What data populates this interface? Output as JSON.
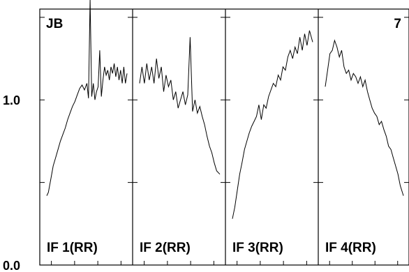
{
  "chart_data": {
    "type": "line",
    "title": "",
    "corner_labels": {
      "left": "JB",
      "right": "7"
    },
    "ylim": [
      0.0,
      1.55
    ],
    "y_tick_labels": [
      {
        "value": 0.0,
        "label": "0.0"
      },
      {
        "value": 1.0,
        "label": "1.0"
      }
    ],
    "y_minor_ticks": [
      0.5,
      1.0,
      1.5
    ],
    "x_minor_ticks": [
      0.125,
      0.375,
      0.625,
      0.875
    ],
    "grid": false,
    "panels": [
      {
        "label": "IF 1(RR)",
        "x": [
          0,
          0.02,
          0.05,
          0.08,
          0.11,
          0.14,
          0.17,
          0.2,
          0.23,
          0.26,
          0.29,
          0.32,
          0.35,
          0.38,
          0.41,
          0.44,
          0.47,
          0.5,
          0.52,
          0.54,
          0.56,
          0.58,
          0.6,
          0.62,
          0.64,
          0.66,
          0.68,
          0.7,
          0.72,
          0.74,
          0.76,
          0.78,
          0.8,
          0.82,
          0.84,
          0.86,
          0.88,
          0.9,
          0.92,
          0.94,
          0.96,
          0.98,
          1
        ],
        "values": [
          0.42,
          0.44,
          0.52,
          0.6,
          0.65,
          0.7,
          0.75,
          0.79,
          0.83,
          0.88,
          0.92,
          0.96,
          0.99,
          1.03,
          1.07,
          1.09,
          1.06,
          1.1,
          1.01,
          1.61,
          1.02,
          1.1,
          1.0,
          1.05,
          1.08,
          1.3,
          1.02,
          1.12,
          1.2,
          1.15,
          1.18,
          1.12,
          1.2,
          1.16,
          1.22,
          1.14,
          1.2,
          1.12,
          1.18,
          1.1,
          1.2,
          1.1,
          1.16
        ]
      },
      {
        "label": "IF 2(RR)",
        "x": [
          0,
          0.03,
          0.06,
          0.09,
          0.12,
          0.15,
          0.18,
          0.21,
          0.24,
          0.27,
          0.3,
          0.33,
          0.36,
          0.39,
          0.42,
          0.45,
          0.48,
          0.51,
          0.54,
          0.57,
          0.6,
          0.63,
          0.66,
          0.69,
          0.72,
          0.75,
          0.78,
          0.81,
          0.84,
          0.87,
          0.9,
          0.93,
          0.96,
          1
        ],
        "values": [
          1.1,
          1.2,
          1.1,
          1.22,
          1.12,
          1.2,
          1.1,
          1.25,
          1.13,
          1.2,
          1.05,
          1.15,
          1.08,
          1.12,
          1.0,
          1.05,
          0.95,
          1.0,
          1.05,
          0.97,
          1.03,
          1.38,
          0.93,
          1.0,
          0.92,
          0.96,
          0.9,
          0.85,
          0.78,
          0.72,
          0.68,
          0.62,
          0.57,
          0.55
        ]
      },
      {
        "label": "IF 3(RR)",
        "x": [
          0,
          0.03,
          0.06,
          0.09,
          0.12,
          0.15,
          0.18,
          0.21,
          0.24,
          0.27,
          0.3,
          0.33,
          0.36,
          0.39,
          0.42,
          0.45,
          0.48,
          0.51,
          0.54,
          0.57,
          0.6,
          0.63,
          0.66,
          0.69,
          0.72,
          0.75,
          0.78,
          0.81,
          0.84,
          0.87,
          0.9,
          0.93,
          0.96,
          1
        ],
        "values": [
          0.28,
          0.35,
          0.45,
          0.55,
          0.62,
          0.7,
          0.75,
          0.8,
          0.84,
          0.87,
          0.9,
          0.97,
          0.88,
          0.97,
          0.95,
          1.02,
          1.06,
          1.1,
          1.08,
          1.15,
          1.12,
          1.2,
          1.18,
          1.26,
          1.3,
          1.25,
          1.32,
          1.28,
          1.38,
          1.3,
          1.4,
          1.33,
          1.42,
          1.35
        ]
      },
      {
        "label": "IF 4(RR)",
        "x": [
          0,
          0.03,
          0.06,
          0.09,
          0.12,
          0.15,
          0.18,
          0.21,
          0.24,
          0.27,
          0.3,
          0.33,
          0.36,
          0.39,
          0.42,
          0.45,
          0.48,
          0.51,
          0.54,
          0.57,
          0.6,
          0.63,
          0.66,
          0.69,
          0.72,
          0.75,
          0.78,
          0.81,
          0.84,
          0.87,
          0.9,
          0.93,
          0.96,
          1
        ],
        "values": [
          1.08,
          1.18,
          1.28,
          1.3,
          1.36,
          1.32,
          1.26,
          1.3,
          1.2,
          1.16,
          1.18,
          1.12,
          1.16,
          1.14,
          1.1,
          1.14,
          1.08,
          1.12,
          1.05,
          1.0,
          0.95,
          0.92,
          0.9,
          0.85,
          0.87,
          0.82,
          0.78,
          0.72,
          0.7,
          0.65,
          0.6,
          0.55,
          0.48,
          0.42
        ]
      }
    ]
  }
}
